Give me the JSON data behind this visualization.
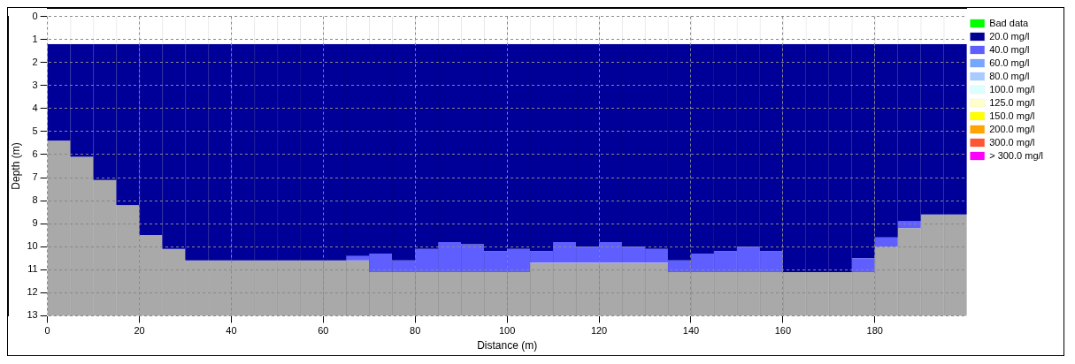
{
  "chart_data": {
    "type": "bar",
    "stacked": true,
    "xlabel": "Distance (m)",
    "ylabel": "Depth (m)",
    "xlim": [
      0,
      200
    ],
    "xticks": [
      0,
      20,
      40,
      60,
      80,
      100,
      120,
      140,
      160,
      180
    ],
    "ylim": [
      13,
      0
    ],
    "yticks": [
      0,
      1,
      2,
      3,
      4,
      5,
      6,
      7,
      8,
      9,
      10,
      11,
      12,
      13
    ],
    "grid": true,
    "legend": "right",
    "x": [
      2.5,
      7.5,
      12.5,
      17.5,
      22.5,
      27.5,
      32.5,
      37.5,
      42.5,
      47.5,
      52.5,
      57.5,
      62.5,
      67.5,
      72.5,
      77.5,
      82.5,
      87.5,
      92.5,
      97.5,
      102.5,
      107.5,
      112.5,
      117.5,
      122.5,
      127.5,
      132.5,
      137.5,
      142.5,
      147.5,
      152.5,
      157.5,
      162.5,
      167.5,
      172.5,
      177.5,
      182.5,
      187.5,
      192.5,
      197.5
    ],
    "series": [
      {
        "color": "#ffffff",
        "values": [
          1.2,
          1.2,
          1.2,
          1.2,
          1.2,
          1.2,
          1.2,
          1.2,
          1.2,
          1.2,
          1.2,
          1.2,
          1.2,
          1.2,
          1.2,
          1.2,
          1.2,
          1.2,
          1.2,
          1.2,
          1.2,
          1.2,
          1.2,
          1.2,
          1.2,
          1.2,
          1.2,
          1.2,
          1.2,
          1.2,
          1.2,
          1.2,
          1.2,
          1.2,
          1.2,
          1.2,
          1.2,
          1.2,
          1.2,
          1.2
        ]
      },
      {
        "name": "Bad data",
        "color": "#00ff00",
        "values": [
          null,
          null,
          null,
          null,
          null,
          null,
          null,
          null,
          null,
          null,
          null,
          null,
          null,
          null,
          null,
          null,
          null,
          null,
          null,
          null,
          null,
          null,
          null,
          null,
          null,
          null,
          null,
          null,
          null,
          null,
          null,
          null,
          null,
          null,
          null,
          null,
          null,
          null,
          null,
          null
        ]
      },
      {
        "name": "20.0 mg/l",
        "color": "#000099",
        "values": [
          4.2,
          4.9,
          5.9,
          7.0,
          8.3,
          8.9,
          9.4,
          9.4,
          9.4,
          9.4,
          9.4,
          9.4,
          9.4,
          9.2,
          9.1,
          9.4,
          8.9,
          8.6,
          8.7,
          9.0,
          8.9,
          9.0,
          8.6,
          8.8,
          8.6,
          8.8,
          8.9,
          9.4,
          9.1,
          9.0,
          8.8,
          9.0,
          9.9,
          9.9,
          9.9,
          9.3,
          8.4,
          7.7,
          7.4,
          7.4
        ]
      },
      {
        "name": "40.0 mg/l",
        "color": "#5f5fff",
        "values": [
          null,
          null,
          null,
          null,
          null,
          null,
          null,
          null,
          null,
          null,
          null,
          null,
          null,
          0.2,
          0.8,
          0.5,
          1.0,
          1.3,
          1.2,
          0.9,
          1.0,
          0.5,
          0.9,
          0.7,
          0.9,
          0.7,
          0.6,
          0.5,
          0.8,
          0.9,
          1.1,
          0.9,
          null,
          null,
          null,
          0.6,
          0.4,
          0.3,
          null,
          null
        ]
      },
      {
        "name": "60.0 mg/l",
        "color": "#77a6ff",
        "values": [
          null,
          null,
          null,
          null,
          null,
          null,
          null,
          null,
          null,
          null,
          null,
          null,
          null,
          null,
          null,
          null,
          null,
          null,
          null,
          null,
          null,
          null,
          null,
          null,
          null,
          null,
          null,
          null,
          null,
          null,
          null,
          null,
          null,
          null,
          null,
          null,
          null,
          null,
          null,
          null
        ]
      },
      {
        "name": "80.0 mg/l",
        "color": "#a8ccff",
        "values": [
          null,
          null,
          null,
          null,
          null,
          null,
          null,
          null,
          null,
          null,
          null,
          null,
          null,
          null,
          null,
          null,
          null,
          null,
          null,
          null,
          null,
          null,
          null,
          null,
          null,
          null,
          null,
          null,
          null,
          null,
          null,
          null,
          null,
          null,
          null,
          null,
          null,
          null,
          null,
          null
        ]
      },
      {
        "name": "100.0 mg/l",
        "color": "#ddffff",
        "values": [
          null,
          null,
          null,
          null,
          null,
          null,
          null,
          null,
          null,
          null,
          null,
          null,
          null,
          null,
          null,
          null,
          null,
          null,
          null,
          null,
          null,
          null,
          null,
          null,
          null,
          null,
          null,
          null,
          null,
          null,
          null,
          null,
          null,
          null,
          null,
          null,
          null,
          null,
          null,
          null
        ]
      },
      {
        "name": "125.0 mg/l",
        "color": "#ffffcc",
        "values": [
          null,
          null,
          null,
          null,
          null,
          null,
          null,
          null,
          null,
          null,
          null,
          null,
          null,
          null,
          null,
          null,
          null,
          null,
          null,
          null,
          null,
          null,
          null,
          null,
          null,
          null,
          null,
          null,
          null,
          null,
          null,
          null,
          null,
          null,
          null,
          null,
          null,
          null,
          null,
          null
        ]
      },
      {
        "name": "150.0 mg/l",
        "color": "#ffff00",
        "values": [
          null,
          null,
          null,
          null,
          null,
          null,
          null,
          null,
          null,
          null,
          null,
          null,
          null,
          null,
          null,
          null,
          null,
          null,
          null,
          null,
          null,
          null,
          null,
          null,
          null,
          null,
          null,
          null,
          null,
          null,
          null,
          null,
          null,
          null,
          null,
          null,
          null,
          null,
          null,
          null
        ]
      },
      {
        "name": "200.0 mg/l",
        "color": "#ffa500",
        "values": [
          null,
          null,
          null,
          null,
          null,
          null,
          null,
          null,
          null,
          null,
          null,
          null,
          null,
          null,
          null,
          null,
          null,
          null,
          null,
          null,
          null,
          null,
          null,
          null,
          null,
          null,
          null,
          null,
          null,
          null,
          null,
          null,
          null,
          null,
          null,
          null,
          null,
          null,
          null,
          null
        ]
      },
      {
        "name": "300.0 mg/l",
        "color": "#ff5533",
        "values": [
          null,
          null,
          null,
          null,
          null,
          null,
          null,
          null,
          null,
          null,
          null,
          null,
          null,
          null,
          null,
          null,
          null,
          null,
          null,
          null,
          null,
          null,
          null,
          null,
          null,
          null,
          null,
          null,
          null,
          null,
          null,
          null,
          null,
          null,
          null,
          null,
          null,
          null,
          null,
          null
        ]
      },
      {
        "name": "> 300.0 mg/l",
        "color": "#ff00ff",
        "values": [
          null,
          null,
          null,
          null,
          null,
          null,
          null,
          null,
          null,
          null,
          null,
          null,
          null,
          null,
          null,
          null,
          null,
          null,
          null,
          null,
          null,
          null,
          null,
          null,
          null,
          null,
          null,
          null,
          null,
          null,
          null,
          null,
          null,
          null,
          null,
          null,
          null,
          null,
          null,
          null
        ]
      },
      {
        "color": "#a9a9a9",
        "values": [
          7.6,
          6.9,
          5.9,
          4.8,
          3.5,
          2.9,
          2.4,
          2.4,
          2.4,
          2.4,
          2.4,
          2.4,
          2.4,
          2.4,
          1.9,
          1.9,
          1.9,
          1.9,
          1.9,
          1.9,
          1.9,
          2.3,
          2.3,
          2.3,
          2.3,
          2.3,
          2.3,
          1.9,
          1.9,
          1.9,
          1.9,
          1.9,
          1.9,
          1.9,
          1.9,
          1.9,
          3.0,
          3.8,
          4.4,
          4.4
        ]
      }
    ]
  }
}
